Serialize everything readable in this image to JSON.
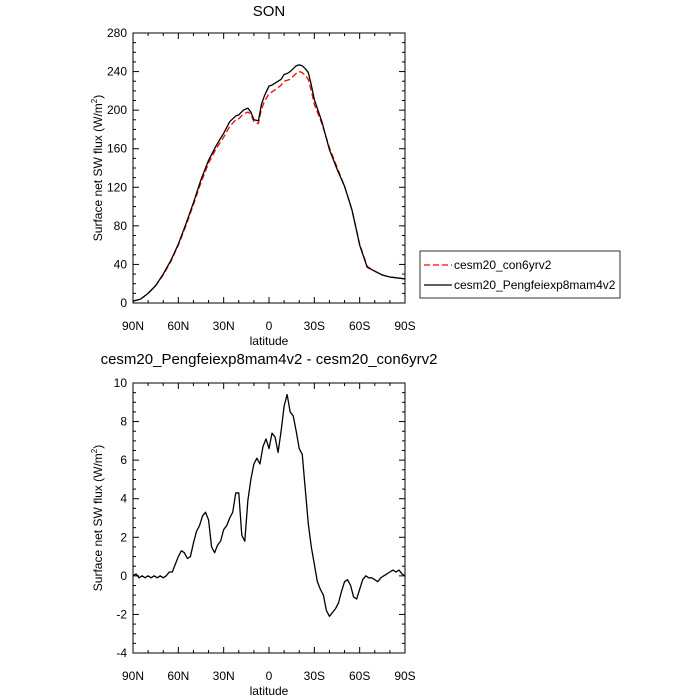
{
  "chart_data": [
    {
      "type": "line",
      "title": "SON",
      "xlabel": "latitude",
      "ylabel": "Surface net SW flux (W/m",
      "ylabel_sup": "2",
      "ylabel_tail": ")",
      "xlim": [
        90,
        -90
      ],
      "ylim": [
        0,
        280
      ],
      "x_ticks": [
        {
          "value": 90,
          "label": "90N"
        },
        {
          "value": 60,
          "label": "60N"
        },
        {
          "value": 30,
          "label": "30N"
        },
        {
          "value": 0,
          "label": "0"
        },
        {
          "value": -30,
          "label": "30S"
        },
        {
          "value": -60,
          "label": "60S"
        },
        {
          "value": -90,
          "label": "90S"
        }
      ],
      "y_ticks": [
        0,
        40,
        80,
        120,
        160,
        200,
        240,
        280
      ],
      "legend_position": "right",
      "series": [
        {
          "name": "cesm20_con6yrv2",
          "color": "#ff0000",
          "dash": "dashed",
          "x": [
            90,
            85,
            80,
            75,
            70,
            65,
            60,
            55,
            50,
            45,
            40,
            35,
            32,
            30,
            26,
            22,
            20,
            17,
            14,
            12,
            10,
            7,
            5,
            3,
            0,
            -2,
            -5,
            -8,
            -10,
            -12,
            -14,
            -16,
            -18,
            -20,
            -22,
            -24,
            -26,
            -28,
            -30,
            -35,
            -40,
            -45,
            -50,
            -55,
            -60,
            -65,
            -70,
            -75,
            -80,
            -85,
            -90
          ],
          "y": [
            2,
            4,
            10,
            18,
            29,
            43,
            60,
            80,
            102,
            125,
            145,
            160,
            167,
            172,
            183,
            190,
            191,
            196,
            198,
            196,
            188,
            186,
            201,
            209,
            217,
            219,
            222,
            226,
            230,
            231,
            232,
            235,
            238,
            240,
            239,
            236,
            232,
            220,
            206,
            186,
            161,
            141,
            121,
            96,
            61,
            38,
            33,
            29,
            27,
            26,
            25
          ]
        },
        {
          "name": "cesm20_Pengfeiexp8mam4v2",
          "color": "#000000",
          "dash": "solid",
          "x": [
            90,
            85,
            80,
            75,
            70,
            65,
            60,
            55,
            50,
            45,
            40,
            35,
            32,
            30,
            26,
            22,
            20,
            17,
            14,
            12,
            10,
            7,
            5,
            3,
            0,
            -2,
            -5,
            -8,
            -10,
            -12,
            -14,
            -16,
            -18,
            -20,
            -22,
            -24,
            -26,
            -28,
            -30,
            -35,
            -40,
            -45,
            -50,
            -55,
            -60,
            -65,
            -70,
            -75,
            -80,
            -85,
            -90
          ],
          "y": [
            2,
            4,
            10,
            18,
            30,
            44,
            61,
            82,
            104,
            128,
            148,
            163,
            171,
            176,
            188,
            194,
            195,
            200,
            202,
            198,
            190,
            189,
            206,
            215,
            225,
            226,
            229,
            232,
            237,
            238,
            240,
            243,
            246,
            247,
            246,
            243,
            239,
            226,
            211,
            188,
            159,
            139,
            121,
            96,
            60,
            37,
            33,
            29,
            27,
            26,
            25
          ]
        }
      ]
    },
    {
      "type": "line",
      "title": "cesm20_Pengfeiexp8mam4v2 - cesm20_con6yrv2",
      "xlabel": "latitude",
      "ylabel": "Surface net SW flux (W/m",
      "ylabel_sup": "2",
      "ylabel_tail": ")",
      "xlim": [
        90,
        -90
      ],
      "ylim": [
        -4,
        10
      ],
      "x_ticks": [
        {
          "value": 90,
          "label": "90N"
        },
        {
          "value": 60,
          "label": "60N"
        },
        {
          "value": 30,
          "label": "30N"
        },
        {
          "value": 0,
          "label": "0"
        },
        {
          "value": -30,
          "label": "30S"
        },
        {
          "value": -60,
          "label": "60S"
        },
        {
          "value": -90,
          "label": "90S"
        }
      ],
      "y_ticks": [
        -4,
        -2,
        0,
        2,
        4,
        6,
        8,
        10
      ],
      "series": [
        {
          "name": "",
          "color": "#000000",
          "dash": "solid",
          "x": [
            90,
            88,
            86,
            84,
            82,
            80,
            78,
            76,
            74,
            72,
            70,
            68,
            66,
            64,
            62,
            60,
            58,
            56,
            54,
            52,
            50,
            48,
            46,
            44,
            42,
            40,
            38,
            36,
            34,
            32,
            30,
            28,
            26,
            24,
            22,
            20,
            18,
            16,
            14,
            12,
            10,
            8,
            6,
            4,
            2,
            0,
            -2,
            -4,
            -6,
            -8,
            -10,
            -12,
            -14,
            -16,
            -18,
            -20,
            -22,
            -24,
            -26,
            -28,
            -30,
            -32,
            -34,
            -36,
            -38,
            -40,
            -42,
            -44,
            -46,
            -48,
            -50,
            -52,
            -54,
            -56,
            -58,
            -60,
            -62,
            -64,
            -66,
            -68,
            -70,
            -72,
            -74,
            -76,
            -78,
            -80,
            -82,
            -84,
            -86,
            -88,
            -90
          ],
          "y": [
            0.0,
            0.1,
            -0.1,
            0.0,
            -0.1,
            0.0,
            -0.1,
            0.0,
            -0.1,
            0.0,
            -0.1,
            0.0,
            0.2,
            0.2,
            0.6,
            1.0,
            1.3,
            1.2,
            0.9,
            1.0,
            1.7,
            2.3,
            2.6,
            3.1,
            3.3,
            2.9,
            1.5,
            1.2,
            1.6,
            1.8,
            2.4,
            2.6,
            3.0,
            3.3,
            4.3,
            4.3,
            2.1,
            1.8,
            3.9,
            5.0,
            5.8,
            6.1,
            5.8,
            6.7,
            7.1,
            6.6,
            7.4,
            7.2,
            6.4,
            7.5,
            8.8,
            9.4,
            8.5,
            8.3,
            7.5,
            6.6,
            6.3,
            4.5,
            2.7,
            1.5,
            0.6,
            -0.3,
            -0.7,
            -1.0,
            -1.8,
            -2.1,
            -1.9,
            -1.7,
            -1.4,
            -0.8,
            -0.3,
            -0.2,
            -0.5,
            -1.1,
            -1.2,
            -0.7,
            -0.2,
            0.0,
            -0.1,
            -0.1,
            -0.2,
            -0.3,
            -0.1,
            0.0,
            0.1,
            0.2,
            0.3,
            0.2,
            0.3,
            0.1,
            0.0
          ]
        }
      ]
    }
  ]
}
